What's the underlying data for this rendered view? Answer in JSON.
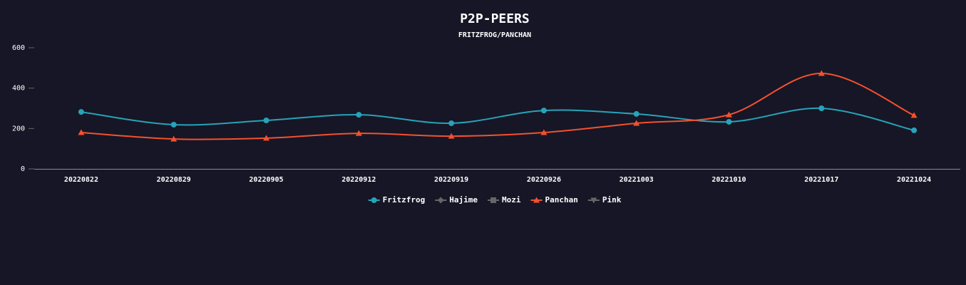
{
  "chart_data": {
    "type": "line",
    "title": "P2P-PEERS",
    "subtitle": "FRITZFROG/PANCHAN",
    "categories": [
      "20220822",
      "20220829",
      "20220905",
      "20220912",
      "20220919",
      "20220926",
      "20221003",
      "20221010",
      "20221017",
      "20221024"
    ],
    "series": [
      {
        "name": "Fritzfrog",
        "color": "#27a3b7",
        "marker": "circle",
        "visible": true,
        "values": [
          282,
          219,
          240,
          268,
          226,
          289,
          272,
          233,
          300,
          191
        ]
      },
      {
        "name": "Hajime",
        "color": "#666666",
        "marker": "diamond",
        "visible": false
      },
      {
        "name": "Mozi",
        "color": "#666666",
        "marker": "square",
        "visible": false
      },
      {
        "name": "Panchan",
        "color": "#f4512c",
        "marker": "triangle",
        "visible": true,
        "values": [
          180,
          148,
          152,
          176,
          162,
          180,
          226,
          268,
          473,
          265
        ]
      },
      {
        "name": "Pink",
        "color": "#666666",
        "marker": "triangle-down",
        "visible": false
      }
    ],
    "ylim": [
      0,
      600
    ],
    "yticks": [
      0,
      200,
      400,
      600
    ],
    "grid": false,
    "legend": "bottom"
  }
}
